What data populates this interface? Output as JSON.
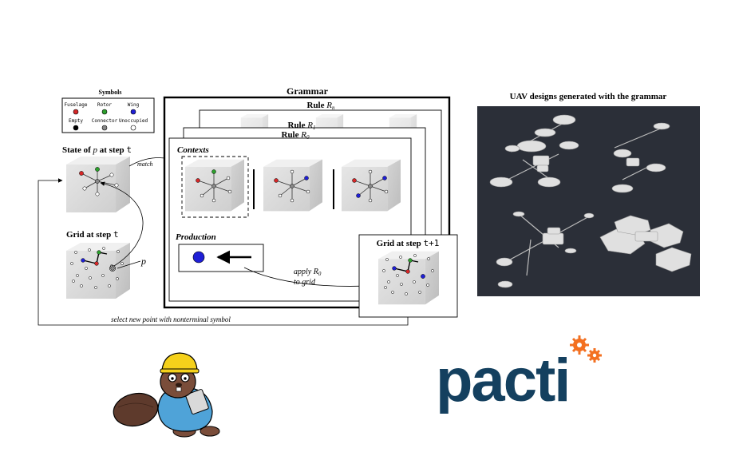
{
  "symbols": {
    "title": "Symbols",
    "items": [
      {
        "label": "Fuselage",
        "color": "#d62728"
      },
      {
        "label": "Rotor",
        "color": "#2ca02c"
      },
      {
        "label": "Wing",
        "color": "#1f1fd6"
      },
      {
        "label": "Empty",
        "color": "#000000"
      },
      {
        "label": "Connector",
        "color": "#888888"
      },
      {
        "label": "Unoccupied",
        "color": "#ffffff"
      }
    ]
  },
  "state": {
    "prefix": "State of ",
    "var": "p",
    "mid": " at step ",
    "step": "t"
  },
  "match_label": "match",
  "grid_t": {
    "prefix": "Grid at step ",
    "step": "t"
  },
  "p_label": "p",
  "grammar": {
    "title": "Grammar",
    "rule_n": {
      "prefix": "Rule ",
      "sym": "R",
      "sub": "n"
    },
    "rule_1": {
      "prefix": "Rule ",
      "sym": "R",
      "sub": "1"
    },
    "rule_0": {
      "prefix": "Rule ",
      "sym": "R",
      "sub": "0"
    },
    "contexts": "Contexts",
    "production": "Production"
  },
  "grid_t1": {
    "prefix": "Grid at step ",
    "step": "t+1"
  },
  "apply": {
    "line1_prefix": "apply ",
    "sym": "R",
    "sub": "0",
    "line2": "to grid"
  },
  "loop_label": "select new point with nonterminal symbol",
  "uav_title": "UAV designs generated with the grammar",
  "logo": {
    "text": "pacti",
    "main_color": "#14405f",
    "accent_color": "#f37021"
  }
}
